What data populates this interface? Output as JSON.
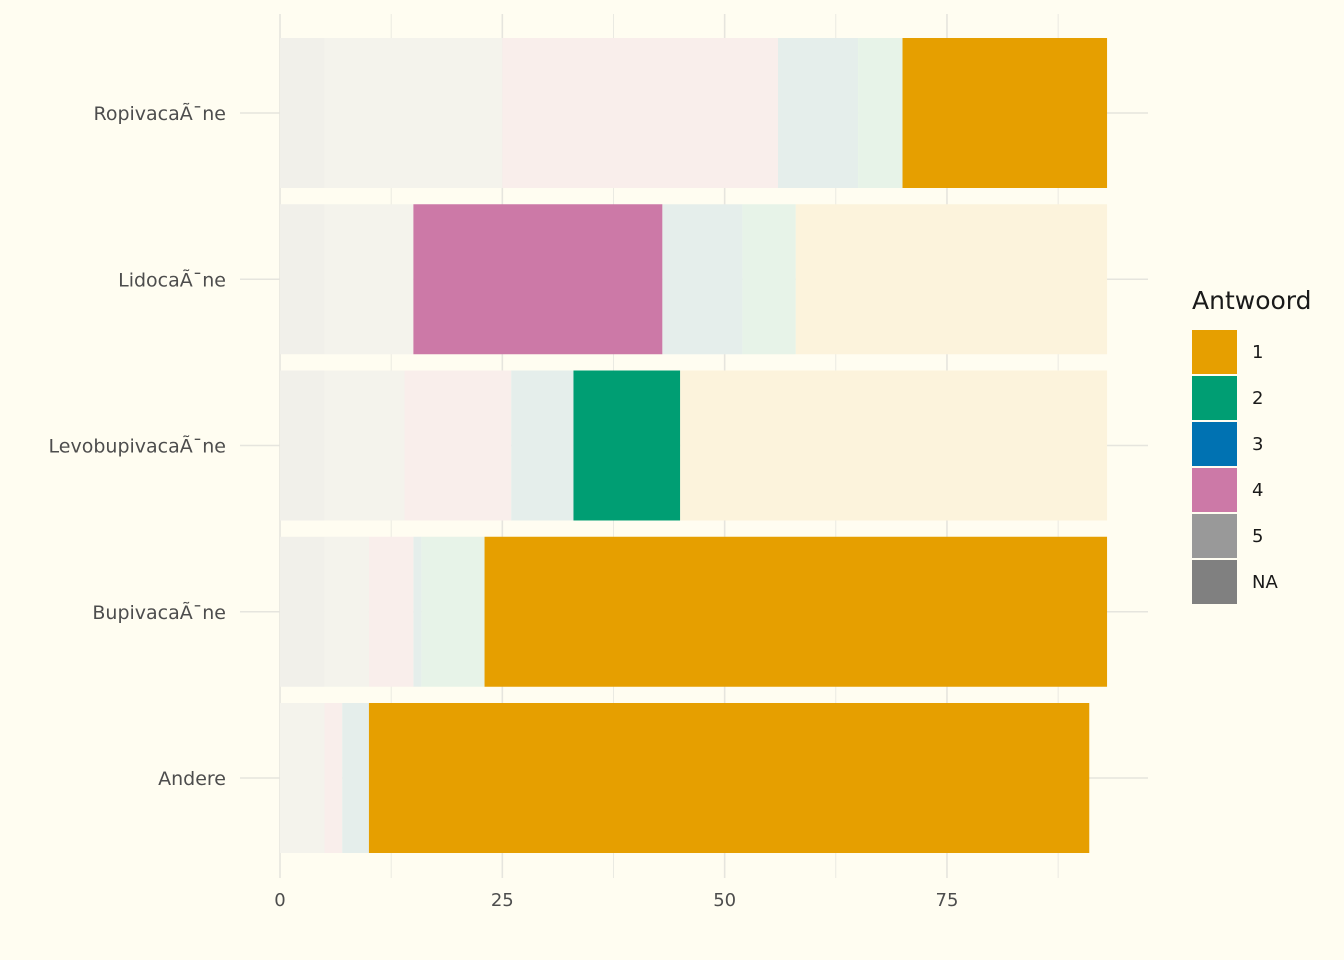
{
  "chart_data": {
    "type": "bar",
    "orientation": "horizontal",
    "stacked": true,
    "categories": [
      "Andere",
      "BupivacaÃ¯ne",
      "LevobupivacaÃ¯ne",
      "LidocaÃ¯ne",
      "RopivacaÃ¯ne"
    ],
    "highlight_note_values": [
      "1",
      "1",
      "2",
      "4",
      "1"
    ],
    "segments": [
      [
        {
          "answer": "5",
          "value": 5,
          "highlighted": false
        },
        {
          "answer": "4",
          "value": 2,
          "highlighted": false
        },
        {
          "answer": "3",
          "value": 3,
          "highlighted": false
        },
        {
          "answer": "2",
          "value": 0,
          "highlighted": false
        },
        {
          "answer": "1",
          "value": 81,
          "highlighted": true
        }
      ],
      [
        {
          "answer": "NA",
          "value": 5,
          "highlighted": false
        },
        {
          "answer": "5",
          "value": 5,
          "highlighted": false
        },
        {
          "answer": "4",
          "value": 5,
          "highlighted": false
        },
        {
          "answer": "3",
          "value": 0.9,
          "highlighted": false
        },
        {
          "answer": "2",
          "value": 7.1,
          "highlighted": false
        },
        {
          "answer": "1",
          "value": 70,
          "highlighted": true
        }
      ],
      [
        {
          "answer": "NA",
          "value": 5,
          "highlighted": false
        },
        {
          "answer": "5",
          "value": 9,
          "highlighted": false
        },
        {
          "answer": "4",
          "value": 12,
          "highlighted": false
        },
        {
          "answer": "3",
          "value": 7,
          "highlighted": false
        },
        {
          "answer": "2",
          "value": 12,
          "highlighted": true
        },
        {
          "answer": "1",
          "value": 48,
          "highlighted": false
        }
      ],
      [
        {
          "answer": "NA",
          "value": 5,
          "highlighted": false
        },
        {
          "answer": "5",
          "value": 10,
          "highlighted": false
        },
        {
          "answer": "4",
          "value": 28,
          "highlighted": true
        },
        {
          "answer": "3",
          "value": 9,
          "highlighted": false
        },
        {
          "answer": "2",
          "value": 6,
          "highlighted": false
        },
        {
          "answer": "1",
          "value": 35,
          "highlighted": false
        }
      ],
      [
        {
          "answer": "NA",
          "value": 5,
          "highlighted": false
        },
        {
          "answer": "5",
          "value": 20,
          "highlighted": false
        },
        {
          "answer": "4",
          "value": 31,
          "highlighted": false
        },
        {
          "answer": "3",
          "value": 9,
          "highlighted": false
        },
        {
          "answer": "2",
          "value": 5,
          "highlighted": false
        },
        {
          "answer": "1",
          "value": 23,
          "highlighted": true
        }
      ]
    ],
    "xlim": [
      0,
      97.5
    ],
    "xticks": [
      0,
      25,
      50,
      75
    ],
    "grid": true,
    "legend": {
      "title": "Antwoord",
      "position": "right",
      "entries": [
        {
          "label": "1",
          "color": "#E69F00"
        },
        {
          "label": "2",
          "color": "#009E73"
        },
        {
          "label": "3",
          "color": "#0072B2"
        },
        {
          "label": "4",
          "color": "#CC79A7"
        },
        {
          "label": "5",
          "color": "#999999"
        },
        {
          "label": "NA",
          "color": "#808080"
        }
      ]
    },
    "faded_colors": {
      "1": "#FCF3DC",
      "2": "#E7F3E8",
      "3": "#E5EEEB",
      "4": "#F9EEEB",
      "5": "#F4F3EC",
      "NA": "#F1F0EA"
    },
    "background_color": "#FFFDF1",
    "grid_color": "#E6E5DE",
    "xlabel": "",
    "ylabel": "",
    "title": ""
  }
}
